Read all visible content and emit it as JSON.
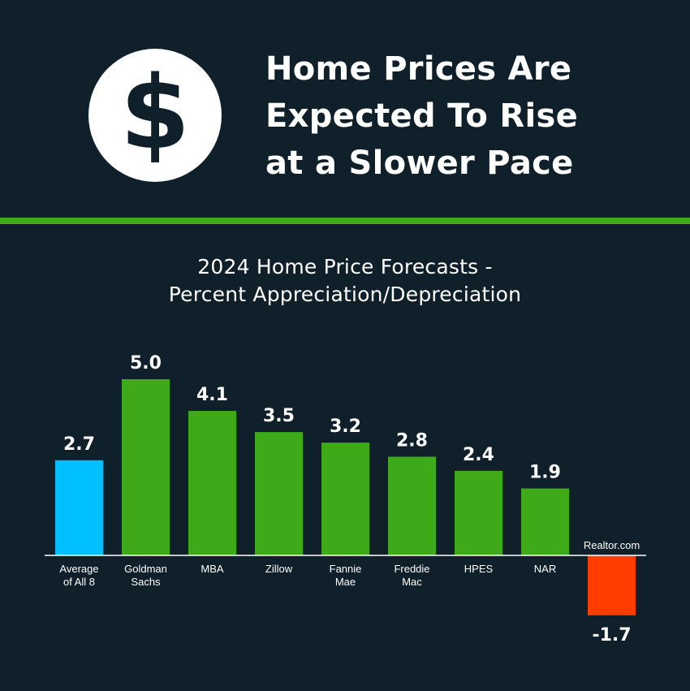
{
  "header": {
    "icon": "dollar-icon",
    "icon_glyph": "$",
    "title_lines": [
      "Home Prices Are",
      "Expected To Rise",
      "at a Slower Pace"
    ]
  },
  "colors": {
    "background": "#0f202a",
    "divider": "#3eaa1a",
    "average_bar": "#00bfff",
    "forecast_bar": "#3eaa1a",
    "negative_bar": "#ff3d00"
  },
  "chart_data": {
    "type": "bar",
    "title": "2024 Home Price Forecasts - Percent Appreciation/Depreciation",
    "title_lines": [
      "2024 Home Price Forecasts -",
      "Percent Appreciation/Depreciation"
    ],
    "categories": [
      [
        "Average",
        "of All 8"
      ],
      [
        "Goldman",
        "Sachs"
      ],
      [
        "MBA"
      ],
      [
        "Zillow"
      ],
      [
        "Fannie",
        "Mae"
      ],
      [
        "Freddie",
        "Mac"
      ],
      [
        "HPES"
      ],
      [
        "NAR"
      ],
      [
        "Realtor.com"
      ]
    ],
    "values": [
      2.7,
      5.0,
      4.1,
      3.5,
      3.2,
      2.8,
      2.4,
      1.9,
      -1.7
    ],
    "value_labels": [
      "2.7",
      "5.0",
      "4.1",
      "3.5",
      "3.2",
      "2.8",
      "2.4",
      "1.9",
      "-1.7"
    ],
    "bar_types": [
      "average",
      "forecast",
      "forecast",
      "forecast",
      "forecast",
      "forecast",
      "forecast",
      "forecast",
      "negative"
    ],
    "xlabel": "",
    "ylabel": "",
    "ylim": [
      -1.7,
      5.0
    ],
    "grid": false,
    "legend": "none"
  }
}
